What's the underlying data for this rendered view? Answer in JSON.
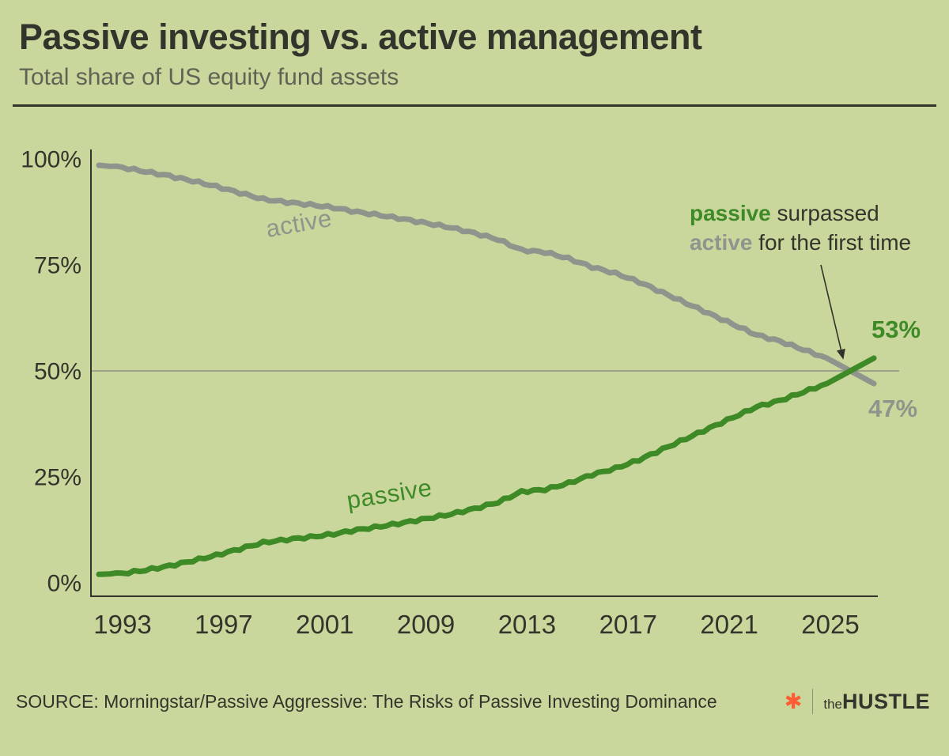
{
  "header": {
    "title": "Passive investing vs. active management",
    "subtitle": "Total share of US equity fund assets"
  },
  "annotation": {
    "passive_bold": "passive",
    "line1_rest": " surpassed",
    "active_bold": "active",
    "line2_rest": " for the first time"
  },
  "end_labels": {
    "passive": "53%",
    "active": "47%"
  },
  "footer": {
    "source": "SOURCE: Morningstar/Passive Aggressive: The Risks of Passive Investing Dominance",
    "brand_the": "the",
    "brand_hustle": "HUSTLE"
  },
  "colors": {
    "background": "#cad79c",
    "passive": "#3e8a27",
    "active": "#8f948c",
    "text": "#32352c",
    "subtitle": "#5f6354",
    "grid": "#8d9183",
    "arrow": "#2f3229",
    "brand": "#ff5c35"
  },
  "chart_data": {
    "type": "line",
    "title": "Passive investing vs. active management",
    "subtitle": "Total share of US equity fund assets",
    "x": [
      1993,
      1994,
      1995,
      1996,
      1997,
      1998,
      1999,
      2000,
      2001,
      2002,
      2003,
      2004,
      2005,
      2006,
      2007,
      2008,
      2009,
      2010,
      2011,
      2012,
      2013,
      2014,
      2015,
      2016,
      2017,
      2018,
      2019,
      2020,
      2021,
      2022,
      2023,
      2024,
      2025,
      2026
    ],
    "series": [
      {
        "name": "active",
        "color": "#8f948c",
        "values": [
          98.5,
          98,
          97,
          96,
          94.8,
          93.5,
          92,
          90.5,
          89.8,
          89.2,
          88.5,
          87.5,
          86.7,
          85.8,
          84.8,
          83.8,
          82.5,
          81,
          78.5,
          78,
          76.5,
          74.5,
          73,
          71,
          68.5,
          66,
          63.5,
          61,
          58.5,
          57,
          55,
          53,
          50,
          47
        ]
      },
      {
        "name": "passive",
        "color": "#3e8a27",
        "values": [
          2,
          2.2,
          3,
          4,
          5.2,
          6.5,
          8,
          9.5,
          10.2,
          10.8,
          11.5,
          12.5,
          13.3,
          14.2,
          15.2,
          16.2,
          17.5,
          19,
          21.5,
          22,
          23.5,
          25.5,
          27,
          29,
          31.5,
          34,
          36.5,
          39,
          41.5,
          43,
          45,
          47,
          50,
          53
        ]
      }
    ],
    "ylim": [
      0,
      100
    ],
    "yticks": [
      0,
      25,
      50,
      75,
      100
    ],
    "ytick_labels": [
      "0%",
      "25%",
      "50%",
      "75%",
      "100%"
    ],
    "xtick_labels": [
      "1993",
      "1997",
      "2001",
      "2009",
      "2013",
      "2017",
      "2021",
      "2025"
    ],
    "gridline_y": 50,
    "legend": "inline-labels",
    "annotation_text": "passive surpassed active for the first time",
    "end_values": {
      "passive": 53,
      "active": 47
    }
  }
}
